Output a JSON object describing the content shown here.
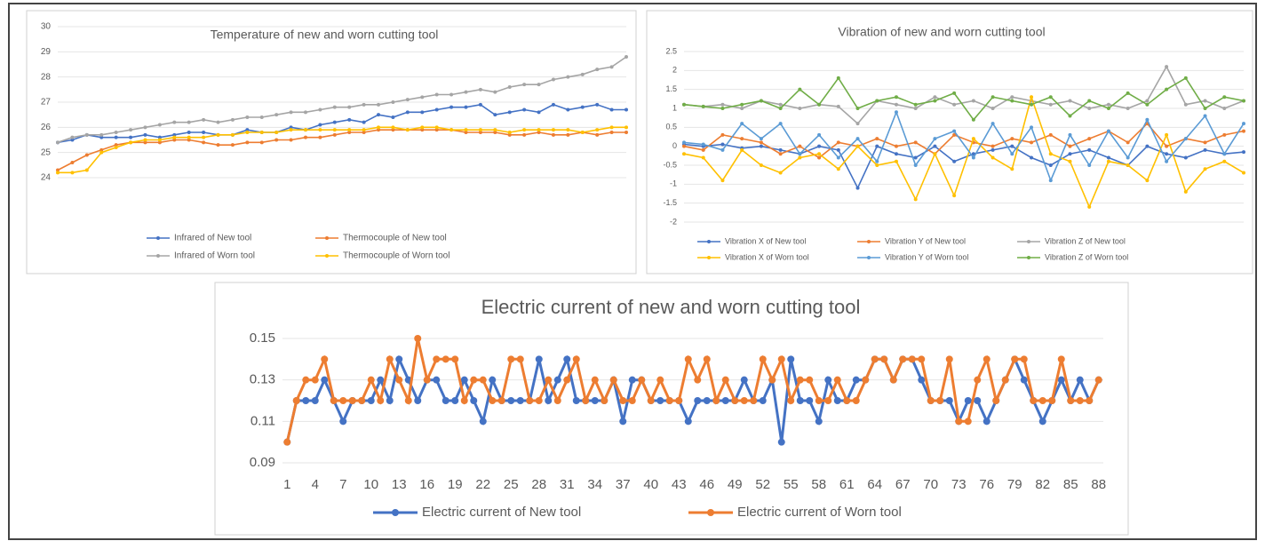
{
  "chart_data": [
    {
      "type": "line",
      "title": "Temperature of new and worn cutting tool",
      "ylim": [
        24,
        30
      ],
      "yticks": [
        24,
        25,
        26,
        27,
        28,
        29,
        30
      ],
      "grid": true,
      "series": [
        {
          "name": "Infrared of New tool",
          "color": "#4472c4",
          "values": [
            25.4,
            25.5,
            25.7,
            25.6,
            25.6,
            25.6,
            25.7,
            25.6,
            25.7,
            25.8,
            25.8,
            25.7,
            25.7,
            25.9,
            25.8,
            25.8,
            26.0,
            25.9,
            26.1,
            26.2,
            26.3,
            26.2,
            26.5,
            26.4,
            26.6,
            26.6,
            26.7,
            26.8,
            26.8,
            26.9,
            26.5,
            26.6,
            26.7,
            26.6,
            26.9,
            26.7,
            26.8,
            26.9,
            26.7,
            26.7
          ]
        },
        {
          "name": "Thermocouple of New tool",
          "color": "#ed7d31",
          "values": [
            24.3,
            24.6,
            24.9,
            25.1,
            25.3,
            25.4,
            25.4,
            25.4,
            25.5,
            25.5,
            25.4,
            25.3,
            25.3,
            25.4,
            25.4,
            25.5,
            25.5,
            25.6,
            25.6,
            25.7,
            25.8,
            25.8,
            25.9,
            25.9,
            25.9,
            25.9,
            25.9,
            25.9,
            25.8,
            25.8,
            25.8,
            25.7,
            25.7,
            25.8,
            25.7,
            25.7,
            25.8,
            25.7,
            25.8,
            25.8
          ]
        },
        {
          "name": "Infrared of Worn tool",
          "color": "#a5a5a5",
          "values": [
            25.4,
            25.6,
            25.7,
            25.7,
            25.8,
            25.9,
            26.0,
            26.1,
            26.2,
            26.2,
            26.3,
            26.2,
            26.3,
            26.4,
            26.4,
            26.5,
            26.6,
            26.6,
            26.7,
            26.8,
            26.8,
            26.9,
            26.9,
            27.0,
            27.1,
            27.2,
            27.3,
            27.3,
            27.4,
            27.5,
            27.4,
            27.6,
            27.7,
            27.7,
            27.9,
            28.0,
            28.1,
            28.3,
            28.4,
            28.8
          ]
        },
        {
          "name": "Thermocouple of Worn tool",
          "color": "#ffc000",
          "values": [
            24.2,
            24.2,
            24.3,
            25.0,
            25.2,
            25.4,
            25.5,
            25.5,
            25.6,
            25.6,
            25.6,
            25.7,
            25.7,
            25.8,
            25.8,
            25.8,
            25.9,
            25.9,
            25.9,
            25.9,
            25.9,
            25.9,
            26.0,
            26.0,
            25.9,
            26.0,
            26.0,
            25.9,
            25.9,
            25.9,
            25.9,
            25.8,
            25.9,
            25.9,
            25.9,
            25.9,
            25.8,
            25.9,
            26.0,
            26.0
          ]
        }
      ]
    },
    {
      "type": "line",
      "title": "Vibration of new and worn cutting tool",
      "ylim": [
        -2,
        2.5
      ],
      "yticks": [
        -2,
        -1.5,
        -1,
        -0.5,
        0,
        0.5,
        1,
        1.5,
        2,
        2.5
      ],
      "grid": true,
      "series": [
        {
          "name": "Vibration X of New tool",
          "color": "#4472c4",
          "values": [
            0.05,
            0.0,
            0.05,
            -0.05,
            0.0,
            -0.1,
            -0.2,
            0.0,
            -0.1,
            -1.1,
            0.0,
            -0.2,
            -0.3,
            0.0,
            -0.4,
            -0.2,
            -0.1,
            0.0,
            -0.3,
            -0.5,
            -0.2,
            -0.1,
            -0.3,
            -0.5,
            0.0,
            -0.2,
            -0.3,
            -0.1,
            -0.2,
            -0.15
          ]
        },
        {
          "name": "Vibration Y of New tool",
          "color": "#ed7d31",
          "values": [
            0.0,
            -0.1,
            0.3,
            0.2,
            0.1,
            -0.2,
            0.0,
            -0.3,
            0.1,
            0.0,
            0.2,
            0.0,
            0.1,
            -0.2,
            0.3,
            0.1,
            0.0,
            0.2,
            0.1,
            0.3,
            0.0,
            0.2,
            0.4,
            0.1,
            0.6,
            0.0,
            0.2,
            0.1,
            0.3,
            0.4
          ]
        },
        {
          "name": "Vibration Z of New tool",
          "color": "#a5a5a5",
          "values": [
            1.1,
            1.05,
            1.1,
            1.0,
            1.2,
            1.1,
            1.0,
            1.1,
            1.05,
            0.6,
            1.2,
            1.1,
            1.0,
            1.3,
            1.1,
            1.2,
            1.0,
            1.3,
            1.2,
            1.1,
            1.2,
            1.0,
            1.1,
            1.0,
            1.2,
            2.1,
            1.1,
            1.2,
            1.0,
            1.2
          ]
        },
        {
          "name": "Vibration X of Worn tool",
          "color": "#ffc000",
          "values": [
            -0.2,
            -0.3,
            -0.9,
            -0.1,
            -0.5,
            -0.7,
            -0.3,
            -0.2,
            -0.6,
            0.0,
            -0.5,
            -0.4,
            -1.4,
            -0.2,
            -1.3,
            0.2,
            -0.3,
            -0.6,
            1.3,
            -0.2,
            -0.4,
            -1.6,
            -0.4,
            -0.5,
            -0.9,
            0.3,
            -1.2,
            -0.6,
            -0.4,
            -0.7
          ]
        },
        {
          "name": "Vibration Y of Worn tool",
          "color": "#5b9bd5",
          "values": [
            0.1,
            0.05,
            -0.1,
            0.6,
            0.2,
            0.6,
            -0.2,
            0.3,
            -0.3,
            0.2,
            -0.4,
            0.9,
            -0.5,
            0.2,
            0.4,
            -0.3,
            0.6,
            -0.2,
            0.5,
            -0.9,
            0.3,
            -0.5,
            0.4,
            -0.3,
            0.7,
            -0.4,
            0.2,
            0.8,
            -0.2,
            0.6
          ]
        },
        {
          "name": "Vibration Z of Worn tool",
          "color": "#70ad47",
          "values": [
            1.1,
            1.05,
            1.0,
            1.1,
            1.2,
            1.0,
            1.5,
            1.1,
            1.8,
            1.0,
            1.2,
            1.3,
            1.1,
            1.2,
            1.4,
            0.7,
            1.3,
            1.2,
            1.1,
            1.3,
            0.8,
            1.2,
            1.0,
            1.4,
            1.1,
            1.5,
            1.8,
            1.0,
            1.3,
            1.2
          ]
        }
      ]
    },
    {
      "type": "line",
      "title": "Electric current of new and worn cutting tool",
      "ylim": [
        0.09,
        0.15
      ],
      "yticks": [
        0.09,
        0.11,
        0.13,
        0.15
      ],
      "grid": true,
      "categories": [
        1,
        null,
        null,
        4,
        null,
        null,
        7,
        null,
        null,
        10,
        null,
        null,
        13,
        null,
        null,
        16,
        null,
        null,
        19,
        null,
        null,
        22,
        null,
        null,
        25,
        null,
        null,
        28,
        null,
        null,
        31,
        null,
        null,
        34,
        null,
        null,
        37,
        null,
        null,
        40,
        null,
        null,
        43,
        null,
        null,
        46,
        null,
        null,
        49,
        null,
        null,
        52,
        null,
        null,
        55,
        null,
        null,
        58,
        null,
        null,
        61,
        null,
        null,
        64,
        null,
        null,
        67,
        null,
        null,
        70,
        null,
        null,
        73,
        null,
        null,
        76,
        null,
        null,
        79,
        null,
        null,
        82,
        null,
        null,
        85,
        null,
        null,
        88
      ],
      "series": [
        {
          "name": "Electric current of New tool",
          "color": "#4472c4",
          "values": [
            0.1,
            0.12,
            0.12,
            0.12,
            0.13,
            0.12,
            0.11,
            0.12,
            0.12,
            0.12,
            0.13,
            0.12,
            0.14,
            0.13,
            0.12,
            0.13,
            0.13,
            0.12,
            0.12,
            0.13,
            0.12,
            0.11,
            0.13,
            0.12,
            0.12,
            0.12,
            0.12,
            0.14,
            0.12,
            0.13,
            0.14,
            0.12,
            0.12,
            0.12,
            0.12,
            0.13,
            0.11,
            0.13,
            0.13,
            0.12,
            0.12,
            0.12,
            0.12,
            0.11,
            0.12,
            0.12,
            0.12,
            0.12,
            0.12,
            0.13,
            0.12,
            0.12,
            0.13,
            0.1,
            0.14,
            0.12,
            0.12,
            0.11,
            0.13,
            0.12,
            0.12,
            0.13,
            0.13,
            0.14,
            0.14,
            0.13,
            0.14,
            0.14,
            0.13,
            0.12,
            0.12,
            0.12,
            0.11,
            0.12,
            0.12,
            0.11,
            0.12,
            0.13,
            0.14,
            0.13,
            0.12,
            0.11,
            0.12,
            0.13,
            0.12,
            0.13,
            0.12,
            0.13
          ]
        },
        {
          "name": "Electric current of Worn tool",
          "color": "#ed7d31",
          "values": [
            0.1,
            0.12,
            0.13,
            0.13,
            0.14,
            0.12,
            0.12,
            0.12,
            0.12,
            0.13,
            0.12,
            0.14,
            0.13,
            0.12,
            0.15,
            0.13,
            0.14,
            0.14,
            0.14,
            0.12,
            0.13,
            0.13,
            0.12,
            0.12,
            0.14,
            0.14,
            0.12,
            0.12,
            0.13,
            0.12,
            0.13,
            0.14,
            0.12,
            0.13,
            0.12,
            0.13,
            0.12,
            0.12,
            0.13,
            0.12,
            0.13,
            0.12,
            0.12,
            0.14,
            0.13,
            0.14,
            0.12,
            0.13,
            0.12,
            0.12,
            0.12,
            0.14,
            0.13,
            0.14,
            0.12,
            0.13,
            0.13,
            0.12,
            0.12,
            0.13,
            0.12,
            0.12,
            0.13,
            0.14,
            0.14,
            0.13,
            0.14,
            0.14,
            0.14,
            0.12,
            0.12,
            0.14,
            0.11,
            0.11,
            0.13,
            0.14,
            0.12,
            0.13,
            0.14,
            0.14,
            0.12,
            0.12,
            0.12,
            0.14,
            0.12,
            0.12,
            0.12,
            0.13
          ]
        }
      ]
    }
  ]
}
